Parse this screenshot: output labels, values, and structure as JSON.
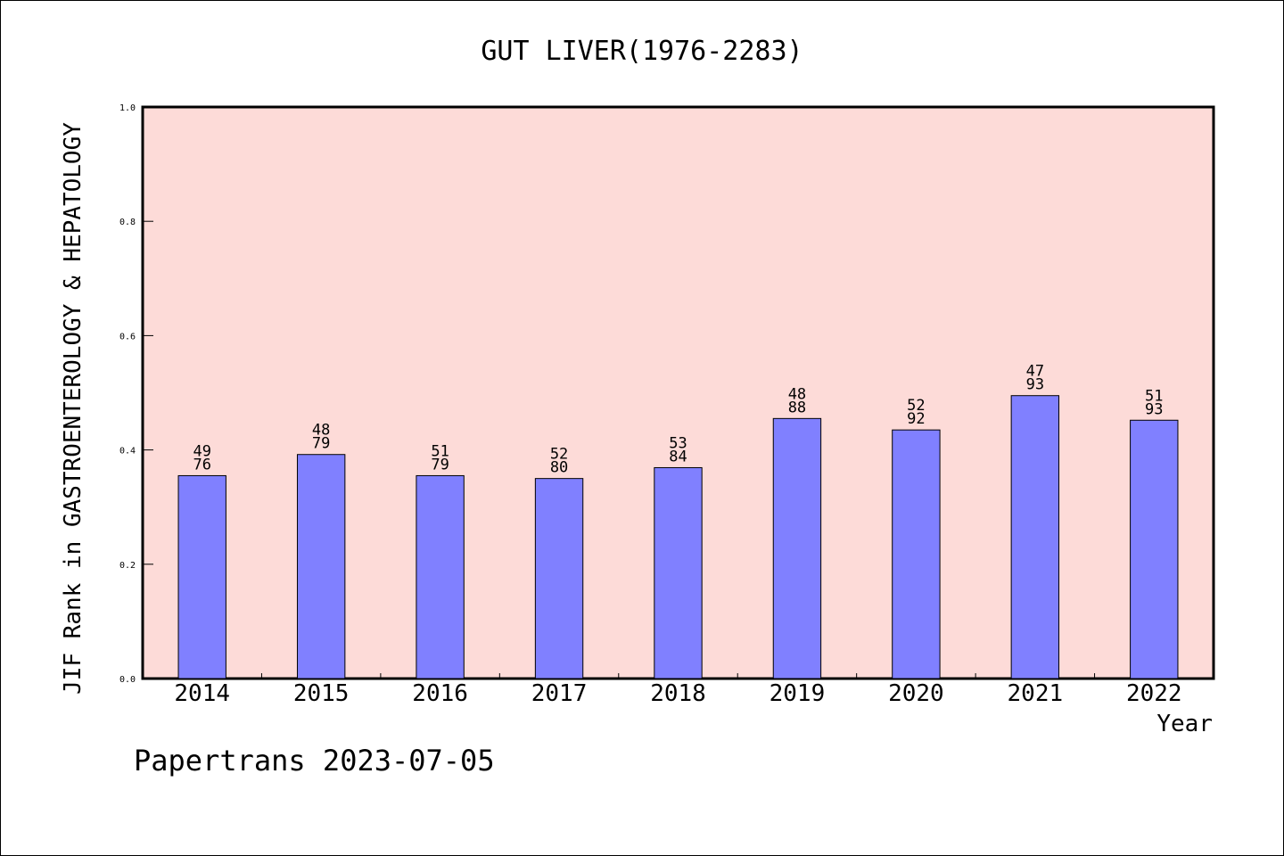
{
  "chart_data": {
    "type": "bar",
    "title": "GUT LIVER(1976-2283)",
    "xlabel": "Year",
    "ylabel": "JIF Rank in GASTROENTEROLOGY & HEPATOLOGY",
    "ylim": [
      0,
      1.0
    ],
    "yticks": [
      "0.0",
      "0.2",
      "0.4",
      "0.6",
      "0.8",
      "1.0"
    ],
    "categories": [
      "2014",
      "2015",
      "2016",
      "2017",
      "2018",
      "2019",
      "2020",
      "2021",
      "2022"
    ],
    "values": [
      0.355,
      0.392,
      0.355,
      0.35,
      0.369,
      0.455,
      0.435,
      0.495,
      0.452
    ],
    "bar_labels": [
      {
        "rank": "49",
        "total": "76"
      },
      {
        "rank": "48",
        "total": "79"
      },
      {
        "rank": "51",
        "total": "79"
      },
      {
        "rank": "52",
        "total": "80"
      },
      {
        "rank": "53",
        "total": "84"
      },
      {
        "rank": "48",
        "total": "88"
      },
      {
        "rank": "52",
        "total": "92"
      },
      {
        "rank": "47",
        "total": "93"
      },
      {
        "rank": "51",
        "total": "93"
      }
    ],
    "grid": false,
    "colors": {
      "bar": "#8080ff",
      "plot_background": "#fddbd8",
      "axis": "#000000"
    }
  },
  "footer": "Papertrans 2023-07-05"
}
